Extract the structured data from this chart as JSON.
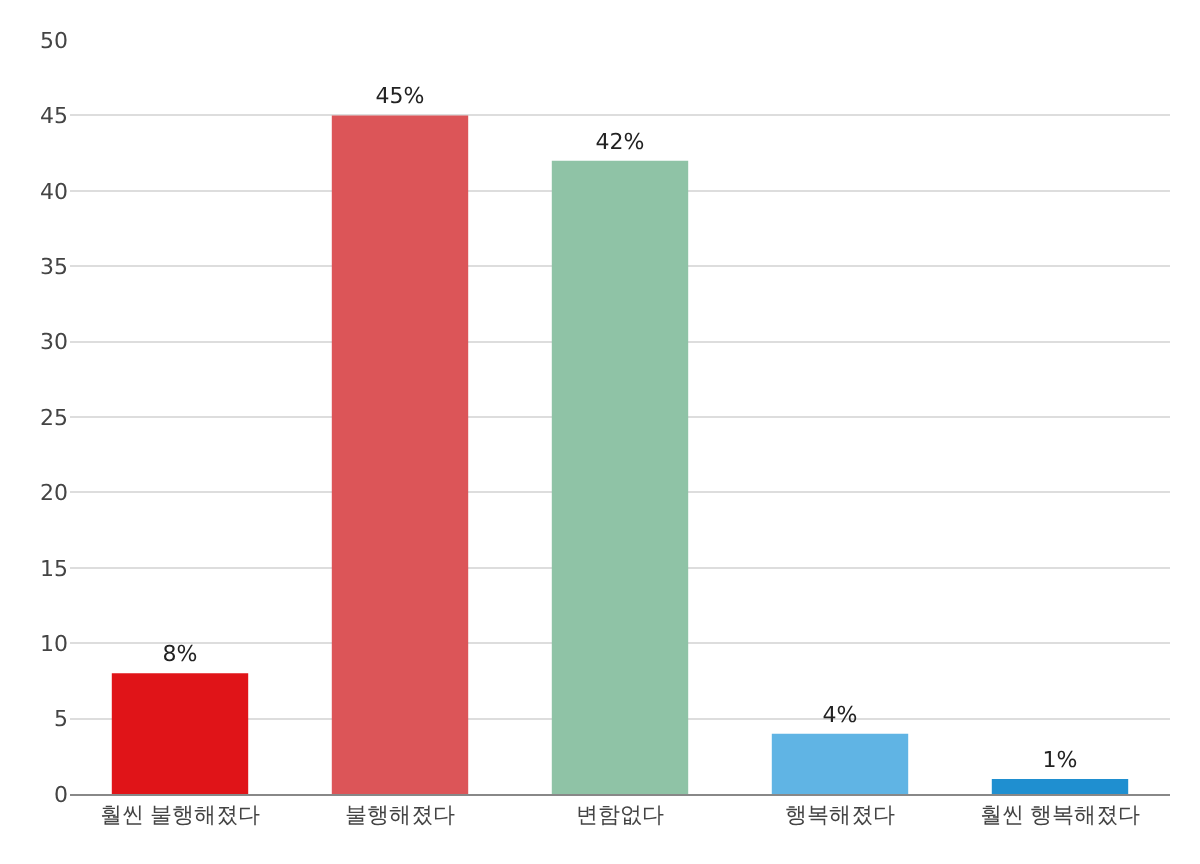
{
  "chart_data": {
    "type": "bar",
    "categories": [
      "훨씬 불행해졌다",
      "불행해졌다",
      "변함없다",
      "행복해졌다",
      "훨씬 행복해졌다"
    ],
    "values": [
      8,
      45,
      42,
      4,
      1
    ],
    "colors": [
      "#e01418",
      "#dc5558",
      "#8fc3a6",
      "#60b4e4",
      "#1f8fd0"
    ],
    "value_labels": [
      "8%",
      "45%",
      "42%",
      "4%",
      "1%"
    ],
    "ylim": [
      0,
      50
    ],
    "yticks": [
      0,
      5,
      10,
      15,
      20,
      25,
      30,
      35,
      40,
      45,
      50
    ],
    "grid": "y"
  }
}
